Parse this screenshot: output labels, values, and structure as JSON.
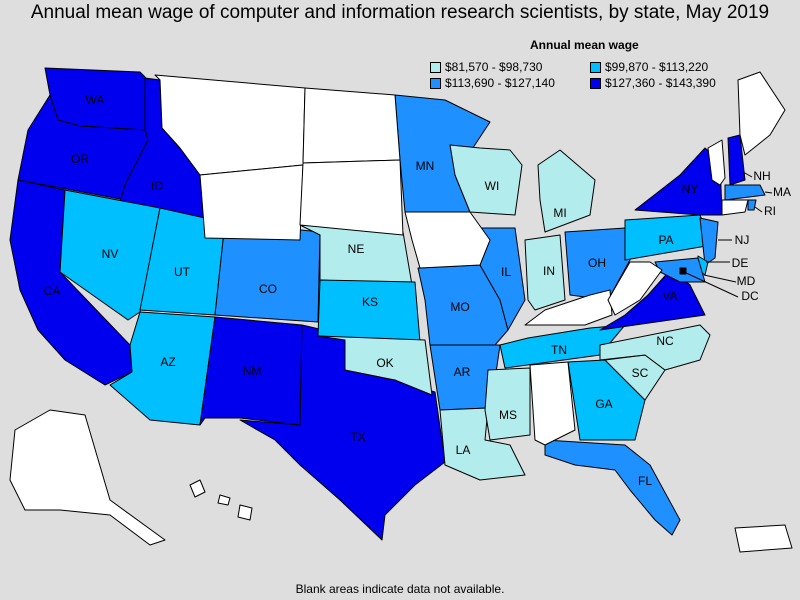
{
  "title": "Annual mean wage of computer and information research scientists, by state, May 2019",
  "footnote": "Blank areas indicate data not available.",
  "legend": {
    "title": "Annual mean wage",
    "bins": [
      {
        "label": "$81,570 - $98,730",
        "color": "#b3ecec"
      },
      {
        "label": "$99,870 - $113,220",
        "color": "#00bfff"
      },
      {
        "label": "$113,690 - $127,140",
        "color": "#1e90ff"
      },
      {
        "label": "$127,360 - $143,390",
        "color": "#0000ee"
      }
    ]
  },
  "no_data_color": "#ffffff",
  "states": [
    {
      "abbr": "WA",
      "bin": 3
    },
    {
      "abbr": "OR",
      "bin": 3
    },
    {
      "abbr": "CA",
      "bin": 3
    },
    {
      "abbr": "ID",
      "bin": 3
    },
    {
      "abbr": "NV",
      "bin": 1
    },
    {
      "abbr": "UT",
      "bin": 1
    },
    {
      "abbr": "AZ",
      "bin": 1
    },
    {
      "abbr": "CO",
      "bin": 2
    },
    {
      "abbr": "NM",
      "bin": 3
    },
    {
      "abbr": "TX",
      "bin": 3
    },
    {
      "abbr": "NE",
      "bin": 0
    },
    {
      "abbr": "KS",
      "bin": 1
    },
    {
      "abbr": "OK",
      "bin": 0
    },
    {
      "abbr": "MN",
      "bin": 2
    },
    {
      "abbr": "MO",
      "bin": 2
    },
    {
      "abbr": "AR",
      "bin": 2
    },
    {
      "abbr": "LA",
      "bin": 0
    },
    {
      "abbr": "WI",
      "bin": 0
    },
    {
      "abbr": "IL",
      "bin": 2
    },
    {
      "abbr": "MS",
      "bin": 0
    },
    {
      "abbr": "MI",
      "bin": 0
    },
    {
      "abbr": "IN",
      "bin": 0
    },
    {
      "abbr": "OH",
      "bin": 2
    },
    {
      "abbr": "TN",
      "bin": 1
    },
    {
      "abbr": "GA",
      "bin": 1
    },
    {
      "abbr": "FL",
      "bin": 2
    },
    {
      "abbr": "SC",
      "bin": 0
    },
    {
      "abbr": "NC",
      "bin": 0
    },
    {
      "abbr": "VA",
      "bin": 3
    },
    {
      "abbr": "PA",
      "bin": 1
    },
    {
      "abbr": "NY",
      "bin": 3
    },
    {
      "abbr": "NJ",
      "bin": 2
    },
    {
      "abbr": "DE",
      "bin": 1
    },
    {
      "abbr": "MD",
      "bin": 2
    },
    {
      "abbr": "DC",
      "bin": 3
    },
    {
      "abbr": "NH",
      "bin": 3
    },
    {
      "abbr": "MA",
      "bin": 2
    },
    {
      "abbr": "RI",
      "bin": 2
    },
    {
      "abbr": "MT",
      "bin": null
    },
    {
      "abbr": "WY",
      "bin": null
    },
    {
      "abbr": "ND",
      "bin": null
    },
    {
      "abbr": "SD",
      "bin": null
    },
    {
      "abbr": "IA",
      "bin": null
    },
    {
      "abbr": "KY",
      "bin": null
    },
    {
      "abbr": "WV",
      "bin": null
    },
    {
      "abbr": "AL",
      "bin": null
    },
    {
      "abbr": "ME",
      "bin": null
    },
    {
      "abbr": "VT",
      "bin": null
    },
    {
      "abbr": "CT",
      "bin": null
    },
    {
      "abbr": "AK",
      "bin": null
    },
    {
      "abbr": "HI",
      "bin": null
    },
    {
      "abbr": "PR",
      "bin": null
    }
  ]
}
